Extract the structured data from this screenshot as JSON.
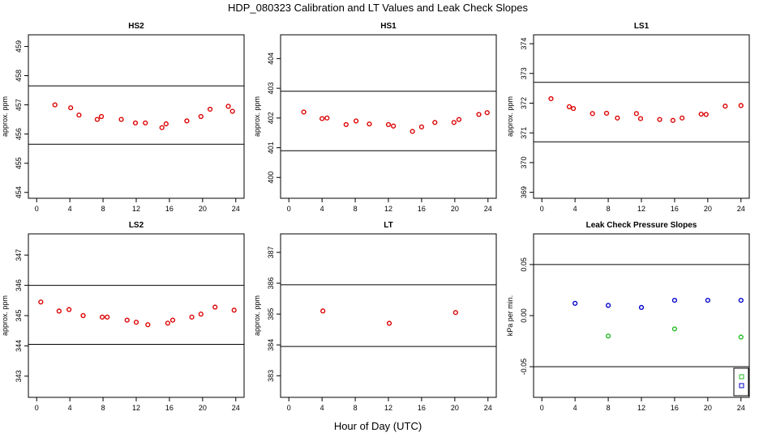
{
  "figure": {
    "title": "HDP_080323  Calibration and LT Values and Leak Check Slopes",
    "xlabel": "Hour of Day (UTC)"
  },
  "colors": {
    "cal": "#dd0000",
    "leak_blue": "#0000cc",
    "leak_green": "#22bb22",
    "axis": "#000000"
  },
  "chart_data": [
    {
      "type": "scatter",
      "title": "HS2",
      "ylabel": "approx. ppm",
      "xlim": [
        -1,
        25
      ],
      "ylim": [
        453.8,
        459.4
      ],
      "xticks": [
        0,
        4,
        8,
        12,
        16,
        20,
        24
      ],
      "yticks": [
        454,
        455,
        456,
        457,
        458,
        459
      ],
      "hlines": [
        455.65,
        457.65
      ],
      "series": [
        {
          "name": "HS2",
          "color": "#dd0000",
          "x": [
            2.2,
            4.1,
            5.1,
            7.3,
            7.8,
            10.2,
            11.9,
            13.1,
            15.1,
            15.6,
            18.1,
            19.8,
            20.9,
            23.1,
            23.6
          ],
          "y": [
            457.0,
            456.9,
            456.65,
            456.5,
            456.6,
            456.5,
            456.38,
            456.38,
            456.22,
            456.35,
            456.45,
            456.6,
            456.85,
            456.95,
            456.78
          ]
        }
      ]
    },
    {
      "type": "scatter",
      "title": "HS1",
      "ylabel": "approx. ppm",
      "xlim": [
        -1,
        25
      ],
      "ylim": [
        399.3,
        404.8
      ],
      "xticks": [
        0,
        4,
        8,
        12,
        16,
        20,
        24
      ],
      "yticks": [
        400,
        401,
        402,
        403,
        404
      ],
      "hlines": [
        400.9,
        402.9
      ],
      "series": [
        {
          "name": "HS1",
          "color": "#dd0000",
          "x": [
            1.8,
            4.0,
            4.6,
            6.9,
            8.1,
            9.7,
            12.0,
            12.6,
            14.9,
            16.0,
            17.6,
            19.9,
            20.5,
            22.9,
            23.9
          ],
          "y": [
            402.2,
            401.98,
            402.0,
            401.78,
            401.9,
            401.8,
            401.78,
            401.73,
            401.55,
            401.7,
            401.85,
            401.85,
            401.95,
            402.12,
            402.18
          ]
        }
      ]
    },
    {
      "type": "scatter",
      "title": "LS1",
      "ylabel": "approx. ppm",
      "xlim": [
        -1,
        25
      ],
      "ylim": [
        368.8,
        374.3
      ],
      "xticks": [
        0,
        4,
        8,
        12,
        16,
        20,
        24
      ],
      "yticks": [
        369,
        370,
        371,
        372,
        373,
        374
      ],
      "hlines": [
        370.7,
        372.7
      ],
      "series": [
        {
          "name": "LS1",
          "color": "#dd0000",
          "x": [
            1.1,
            3.3,
            3.8,
            6.1,
            7.8,
            9.1,
            11.4,
            11.9,
            14.2,
            15.8,
            16.9,
            19.2,
            19.8,
            22.1,
            24.0
          ],
          "y": [
            372.15,
            371.88,
            371.82,
            371.65,
            371.66,
            371.5,
            371.65,
            371.48,
            371.45,
            371.42,
            371.5,
            371.63,
            371.62,
            371.9,
            371.92
          ]
        }
      ]
    },
    {
      "type": "scatter",
      "title": "LS2",
      "ylabel": "approx. ppm",
      "xlim": [
        -1,
        25
      ],
      "ylim": [
        342.3,
        347.7
      ],
      "xticks": [
        0,
        4,
        8,
        12,
        16,
        20,
        24
      ],
      "yticks": [
        343,
        344,
        345,
        346,
        347
      ],
      "hlines": [
        344.05,
        346.0
      ],
      "series": [
        {
          "name": "LS2",
          "color": "#dd0000",
          "x": [
            0.5,
            2.7,
            3.9,
            5.6,
            7.9,
            8.5,
            10.9,
            12.0,
            13.4,
            15.8,
            16.4,
            18.7,
            19.8,
            21.5,
            23.8
          ],
          "y": [
            345.45,
            345.15,
            345.2,
            345.0,
            344.95,
            344.95,
            344.85,
            344.78,
            344.7,
            344.75,
            344.85,
            344.95,
            345.05,
            345.28,
            345.18
          ]
        }
      ]
    },
    {
      "type": "scatter",
      "title": "LT",
      "ylabel": "approx. ppm",
      "xlim": [
        -1,
        25
      ],
      "ylim": [
        382.3,
        387.6
      ],
      "xticks": [
        0,
        4,
        8,
        12,
        16,
        20,
        24
      ],
      "yticks": [
        383,
        384,
        385,
        386,
        387
      ],
      "hlines": [
        383.95,
        385.95
      ],
      "series": [
        {
          "name": "LT",
          "color": "#dd0000",
          "x": [
            4.1,
            12.1,
            20.1
          ],
          "y": [
            385.1,
            384.7,
            385.05
          ]
        }
      ]
    },
    {
      "type": "scatter",
      "title": "Leak Check Pressure Slopes",
      "ylabel": "kPa per min.",
      "xlim": [
        -1,
        25
      ],
      "ylim": [
        -0.08,
        0.08
      ],
      "xticks": [
        0,
        4,
        8,
        12,
        16,
        20,
        24
      ],
      "yticks": [
        -0.05,
        0.0,
        0.05
      ],
      "ytick_labels": [
        "-0.05",
        "0.00",
        "0.05"
      ],
      "hlines": [
        -0.05,
        0.05
      ],
      "series": [
        {
          "name": "blue",
          "color": "#0000cc",
          "x": [
            4,
            8,
            12,
            16,
            20,
            24
          ],
          "y": [
            0.012,
            0.01,
            0.008,
            0.015,
            0.015,
            0.015
          ]
        },
        {
          "name": "green",
          "color": "#22bb22",
          "x": [
            8,
            16,
            24
          ],
          "y": [
            -0.02,
            -0.013,
            -0.021
          ]
        }
      ],
      "legend": {
        "location": "bottom-right",
        "symbols": [
          "#22bb22",
          "#0000cc"
        ]
      }
    }
  ]
}
